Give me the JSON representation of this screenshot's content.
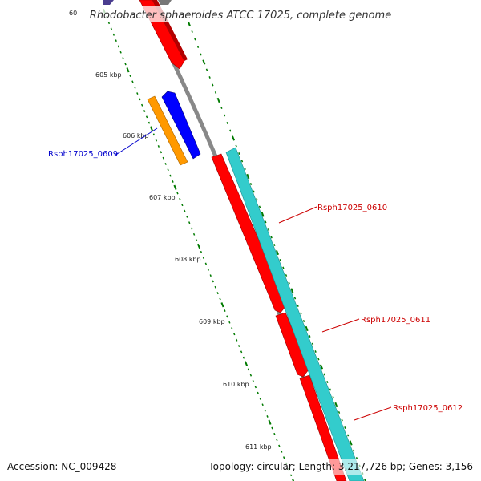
{
  "title": "Rhodobacter sphaeroides ATCC 17025, complete genome",
  "footer": {
    "accession": "Accession: NC_009428",
    "summary": "Topology: circular; Length: 3,217,726 bp; Genes: 3,156"
  },
  "ticks": {
    "cut_label": "60",
    "labels": [
      "605 kbp",
      "606 kbp",
      "607 kbp",
      "608 kbp",
      "609 kbp",
      "610 kbp",
      "611 kbp"
    ]
  },
  "genes": {
    "g0609": {
      "label": "Rsph17025_0609",
      "color": "#0000cc"
    },
    "g0610": {
      "label": "Rsph17025_0610",
      "color": "#cc0000"
    },
    "g0611": {
      "label": "Rsph17025_0611",
      "color": "#cc0000"
    },
    "g0612": {
      "label": "Rsph17025_0612",
      "color": "#cc0000"
    }
  },
  "colors": {
    "backbone": "#888888",
    "cds_red": "#ff0000",
    "cds_blue": "#0000ff",
    "cds_orange": "#ff9900",
    "cds_cyan": "#33cccc",
    "tick_green": "#007a00",
    "cds_purple": "#4a3d8f"
  }
}
